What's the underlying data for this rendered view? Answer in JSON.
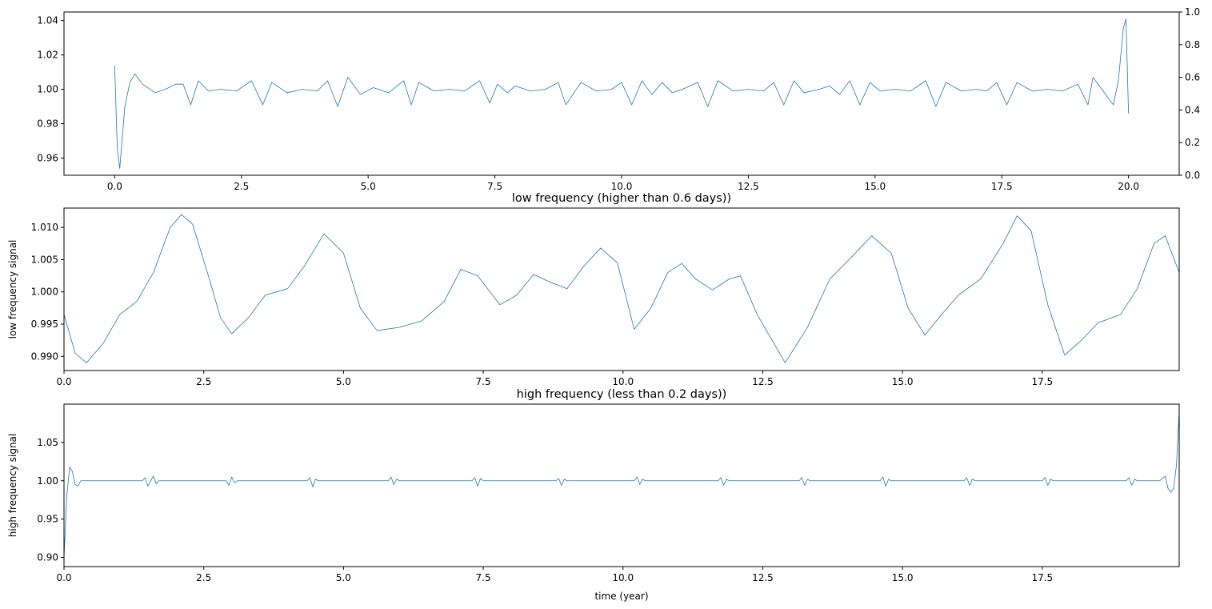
{
  "chart_data": [
    {
      "type": "line",
      "title": "",
      "xlabel": "",
      "ylabel": "",
      "xlim": [
        -1.0,
        21.0
      ],
      "ylim": [
        0.95,
        1.045
      ],
      "xticks": [
        0.0,
        2.5,
        5.0,
        7.5,
        10.0,
        12.5,
        15.0,
        17.5,
        20.0
      ],
      "xtick_labels": [
        "0.0",
        "2.5",
        "5.0",
        "7.5",
        "10.0",
        "12.5",
        "15.0",
        "17.5",
        "20.0"
      ],
      "yticks": [
        0.96,
        0.98,
        1.0,
        1.02,
        1.04
      ],
      "ytick_labels": [
        "0.96",
        "0.98",
        "1.00",
        "1.02",
        "1.04"
      ],
      "secondary_y": {
        "ylim": [
          0.0,
          1.0
        ],
        "yticks": [
          0.0,
          0.2,
          0.4,
          0.6,
          0.8,
          1.0
        ],
        "ytick_labels": [
          "0.0",
          "0.2",
          "0.4",
          "0.6",
          "0.8",
          "1.0"
        ]
      },
      "grid": false,
      "legend": "none",
      "color": "#1f77b4",
      "series": [
        {
          "x": [
            0.0,
            0.05,
            0.1,
            0.2,
            0.3,
            0.4,
            0.55,
            0.8,
            1.0,
            1.2,
            1.35,
            1.5,
            1.65,
            1.85,
            2.1,
            2.4,
            2.7,
            2.92,
            3.1,
            3.4,
            3.7,
            4.0,
            4.2,
            4.4,
            4.6,
            4.85,
            5.1,
            5.4,
            5.7,
            5.85,
            6.0,
            6.3,
            6.6,
            6.9,
            7.2,
            7.4,
            7.55,
            7.75,
            7.9,
            8.2,
            8.5,
            8.75,
            8.9,
            9.2,
            9.5,
            9.8,
            10.0,
            10.2,
            10.4,
            10.6,
            10.8,
            11.0,
            11.2,
            11.5,
            11.7,
            11.9,
            12.2,
            12.5,
            12.8,
            13.0,
            13.2,
            13.4,
            13.6,
            13.9,
            14.1,
            14.3,
            14.5,
            14.7,
            14.9,
            15.1,
            15.4,
            15.7,
            16.0,
            16.2,
            16.4,
            16.7,
            17.0,
            17.2,
            17.4,
            17.6,
            17.8,
            18.1,
            18.4,
            18.7,
            19.0,
            19.2,
            19.3,
            19.5,
            19.7,
            19.8,
            19.9,
            19.95,
            20.0
          ],
          "y": [
            1.014,
            0.966,
            0.954,
            0.99,
            1.004,
            1.009,
            1.003,
            0.998,
            1.0,
            1.003,
            1.003,
            0.991,
            1.005,
            0.999,
            1.0,
            0.999,
            1.005,
            0.991,
            1.004,
            0.998,
            1.0,
            0.999,
            1.005,
            0.99,
            1.007,
            0.997,
            1.001,
            0.998,
            1.005,
            0.991,
            1.004,
            0.999,
            1.0,
            0.999,
            1.005,
            0.992,
            1.003,
            0.998,
            1.002,
            0.999,
            1.0,
            1.004,
            0.991,
            1.004,
            0.999,
            1.0,
            1.004,
            0.991,
            1.005,
            0.997,
            1.004,
            0.998,
            1.0,
            1.004,
            0.99,
            1.005,
            0.999,
            1.0,
            0.999,
            1.004,
            0.991,
            1.005,
            0.998,
            1.0,
            1.002,
            0.997,
            1.005,
            0.991,
            1.004,
            0.999,
            1.0,
            0.999,
            1.005,
            0.99,
            1.004,
            0.999,
            1.0,
            0.999,
            1.004,
            0.991,
            1.004,
            0.999,
            1.0,
            0.999,
            1.003,
            0.991,
            1.007,
            0.999,
            0.991,
            1.005,
            1.036,
            1.041,
            0.986
          ]
        }
      ]
    },
    {
      "type": "line",
      "title": "low frequency (higher than 0.6 days))",
      "xlabel": "",
      "ylabel": "low frequency signal",
      "xlim": [
        0.0,
        19.95
      ],
      "ylim": [
        0.9878,
        1.013
      ],
      "xticks": [
        0.0,
        2.5,
        5.0,
        7.5,
        10.0,
        12.5,
        15.0,
        17.5
      ],
      "xtick_labels": [
        "0.0",
        "2.5",
        "5.0",
        "7.5",
        "10.0",
        "12.5",
        "15.0",
        "17.5"
      ],
      "yticks": [
        0.99,
        0.995,
        1.0,
        1.005,
        1.01
      ],
      "ytick_labels": [
        "0.990",
        "0.995",
        "1.000",
        "1.005",
        "1.010"
      ],
      "grid": false,
      "legend": "none",
      "color": "#1f77b4",
      "series": [
        {
          "x": [
            0.0,
            0.2,
            0.4,
            0.7,
            1.0,
            1.3,
            1.6,
            1.9,
            2.1,
            2.3,
            2.6,
            2.8,
            3.0,
            3.3,
            3.6,
            4.0,
            4.3,
            4.65,
            5.0,
            5.3,
            5.6,
            6.0,
            6.4,
            6.8,
            7.1,
            7.4,
            7.8,
            8.1,
            8.4,
            8.7,
            9.0,
            9.3,
            9.6,
            9.9,
            10.2,
            10.5,
            10.8,
            11.05,
            11.3,
            11.6,
            11.9,
            12.1,
            12.4,
            12.9,
            13.3,
            13.7,
            14.1,
            14.45,
            14.8,
            15.1,
            15.4,
            15.7,
            16.0,
            16.4,
            16.8,
            17.05,
            17.3,
            17.6,
            17.9,
            18.2,
            18.5,
            18.9,
            19.2,
            19.5,
            19.7,
            19.95
          ],
          "y": [
            0.9965,
            0.9905,
            0.989,
            0.992,
            0.9965,
            0.9985,
            1.003,
            1.01,
            1.012,
            1.0105,
            1.002,
            0.996,
            0.9935,
            0.996,
            0.9995,
            1.0005,
            1.004,
            1.009,
            1.006,
            0.9975,
            0.994,
            0.9945,
            0.9955,
            0.9985,
            1.0035,
            1.0025,
            0.998,
            0.9995,
            1.0027,
            1.0015,
            1.0005,
            1.004,
            1.0068,
            1.0045,
            0.9942,
            0.9975,
            1.003,
            1.0044,
            1.002,
            1.0003,
            1.002,
            1.0025,
            0.9965,
            0.989,
            0.9945,
            1.002,
            1.0055,
            1.0087,
            1.006,
            0.9975,
            0.9933,
            0.9965,
            0.9995,
            1.002,
            1.0075,
            1.0118,
            1.0095,
            0.998,
            0.9902,
            0.9925,
            0.9952,
            0.9965,
            1.0005,
            1.0075,
            1.0087,
            1.003
          ]
        }
      ]
    },
    {
      "type": "line",
      "title": "high frequency (less than 0.2 days))",
      "xlabel": "time (year)",
      "ylabel": "high frequency signal",
      "xlim": [
        0.0,
        19.95
      ],
      "ylim": [
        0.888,
        1.1
      ],
      "xticks": [
        0.0,
        2.5,
        5.0,
        7.5,
        10.0,
        12.5,
        15.0,
        17.5
      ],
      "xtick_labels": [
        "0.0",
        "2.5",
        "5.0",
        "7.5",
        "10.0",
        "12.5",
        "15.0",
        "17.5"
      ],
      "yticks": [
        0.9,
        0.95,
        1.0,
        1.05
      ],
      "ytick_labels": [
        "0.90",
        "0.95",
        "1.00",
        "1.05"
      ],
      "grid": false,
      "legend": "none",
      "color": "#1f77b4",
      "series": [
        {
          "x": [
            0.0,
            0.05,
            0.1,
            0.15,
            0.2,
            0.25,
            0.3,
            0.4,
            1.4,
            1.45,
            1.5,
            1.55,
            1.6,
            1.65,
            1.7,
            2.9,
            2.95,
            3.0,
            3.05,
            3.1,
            4.35,
            4.4,
            4.45,
            4.5,
            4.55,
            5.8,
            5.85,
            5.9,
            5.95,
            6.0,
            7.3,
            7.35,
            7.4,
            7.45,
            7.5,
            8.8,
            8.85,
            8.9,
            8.95,
            9.0,
            10.2,
            10.25,
            10.3,
            10.35,
            10.4,
            11.7,
            11.75,
            11.8,
            11.85,
            11.9,
            13.15,
            13.2,
            13.25,
            13.3,
            13.35,
            14.6,
            14.65,
            14.7,
            14.75,
            14.8,
            16.1,
            16.15,
            16.2,
            16.25,
            16.3,
            17.5,
            17.55,
            17.6,
            17.65,
            17.7,
            19.0,
            19.05,
            19.1,
            19.15,
            19.2,
            19.6,
            19.7,
            19.75,
            19.8,
            19.85,
            19.9,
            19.95
          ],
          "y": [
            0.9,
            0.98,
            1.018,
            1.012,
            0.995,
            0.993,
            1.0,
            1.0,
            1.0,
            1.004,
            0.993,
            1.0,
            1.006,
            0.996,
            1.0,
            1.0,
            0.994,
            1.005,
            0.997,
            1.0,
            1.0,
            1.004,
            0.992,
            1.002,
            1.0,
            1.0,
            1.005,
            0.995,
            1.002,
            1.0,
            1.0,
            1.004,
            0.993,
            1.003,
            1.0,
            1.0,
            1.003,
            0.994,
            1.002,
            1.0,
            1.0,
            1.005,
            0.995,
            1.002,
            1.0,
            1.0,
            1.004,
            0.994,
            1.002,
            1.0,
            1.0,
            1.004,
            0.994,
            1.002,
            1.0,
            1.0,
            1.005,
            0.993,
            1.002,
            1.0,
            1.0,
            1.004,
            0.994,
            1.002,
            1.0,
            1.0,
            1.004,
            0.994,
            1.002,
            1.0,
            1.0,
            1.004,
            0.994,
            1.002,
            1.0,
            1.0,
            1.006,
            0.99,
            0.985,
            0.99,
            1.02,
            1.09
          ]
        }
      ]
    }
  ]
}
